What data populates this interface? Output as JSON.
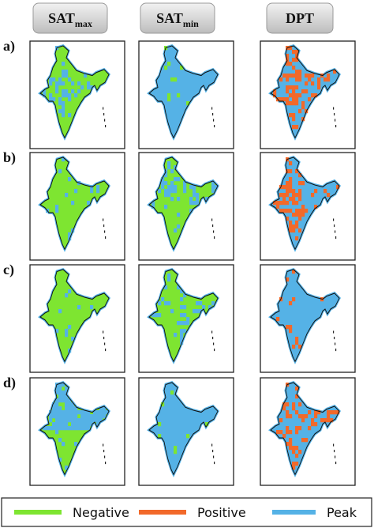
{
  "columns": [
    {
      "text": "SAT",
      "sub": "max"
    },
    {
      "text": "SAT",
      "sub": "min"
    },
    {
      "text": "DPT"
    }
  ],
  "rows": [
    "a)",
    "b)",
    "c)",
    "d)"
  ],
  "legend": [
    {
      "label": "Negative",
      "color": "#7ee531"
    },
    {
      "label": "Positive",
      "color": "#f2692a"
    },
    {
      "label": "Peak",
      "color": "#55b2e6"
    }
  ]
}
